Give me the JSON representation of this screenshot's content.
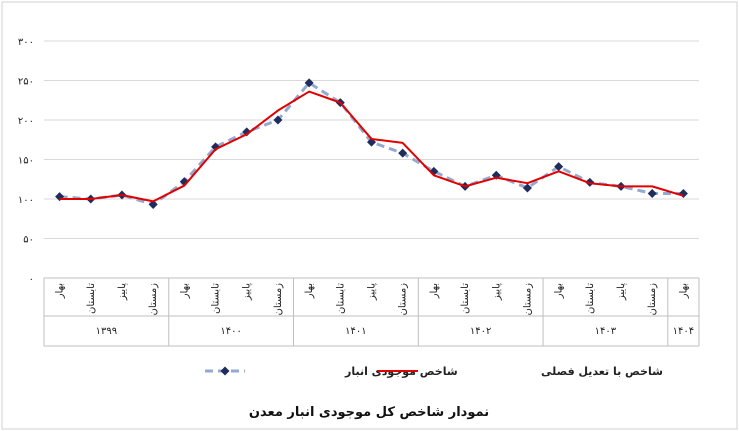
{
  "chart_data": {
    "type": "line",
    "title": "نمودار شاخص کل موجودی انبار معدن",
    "ylim": [
      0,
      300
    ],
    "yticks": [
      "۰",
      "۵۰",
      "۱۰۰",
      "۱۵۰",
      "۲۰۰",
      "۲۵۰",
      "۳۰۰"
    ],
    "grid": true,
    "legend_position": "bottom",
    "categories": [
      "بهار",
      "تابستان",
      "پاییز",
      "زمستان",
      "بهار",
      "تابستان",
      "پاییز",
      "زمستان",
      "بهار",
      "تابستان",
      "پاییز",
      "زمستان",
      "بهار",
      "تابستان",
      "پاییز",
      "زمستان",
      "بهار",
      "تابستان",
      "پاییز",
      "زمستان",
      "بهار"
    ],
    "years": [
      {
        "label": "۱۳۹۹",
        "span": 4
      },
      {
        "label": "۱۴۰۰",
        "span": 4
      },
      {
        "label": "۱۴۰۱",
        "span": 4
      },
      {
        "label": "۱۴۰۲",
        "span": 4
      },
      {
        "label": "۱۴۰۳",
        "span": 4
      },
      {
        "label": "۱۴۰۴",
        "span": 1
      }
    ],
    "series": [
      {
        "name": "شاخص موجودی انبار",
        "color": "#94A9D0",
        "marker_color": "#1F2D5C",
        "style": "dashed",
        "values": [
          103,
          100,
          105,
          93,
          122,
          166,
          185,
          200,
          247,
          222,
          172,
          158,
          135,
          116,
          130,
          114,
          141,
          121,
          116,
          107,
          107
        ]
      },
      {
        "name": "شاخص با تعدیل فصلی",
        "color": "#E00000",
        "style": "solid",
        "values": [
          100,
          100,
          105,
          97,
          117,
          163,
          182,
          212,
          236,
          222,
          176,
          171,
          130,
          116,
          127,
          120,
          135,
          120,
          116,
          116,
          104
        ]
      }
    ]
  }
}
